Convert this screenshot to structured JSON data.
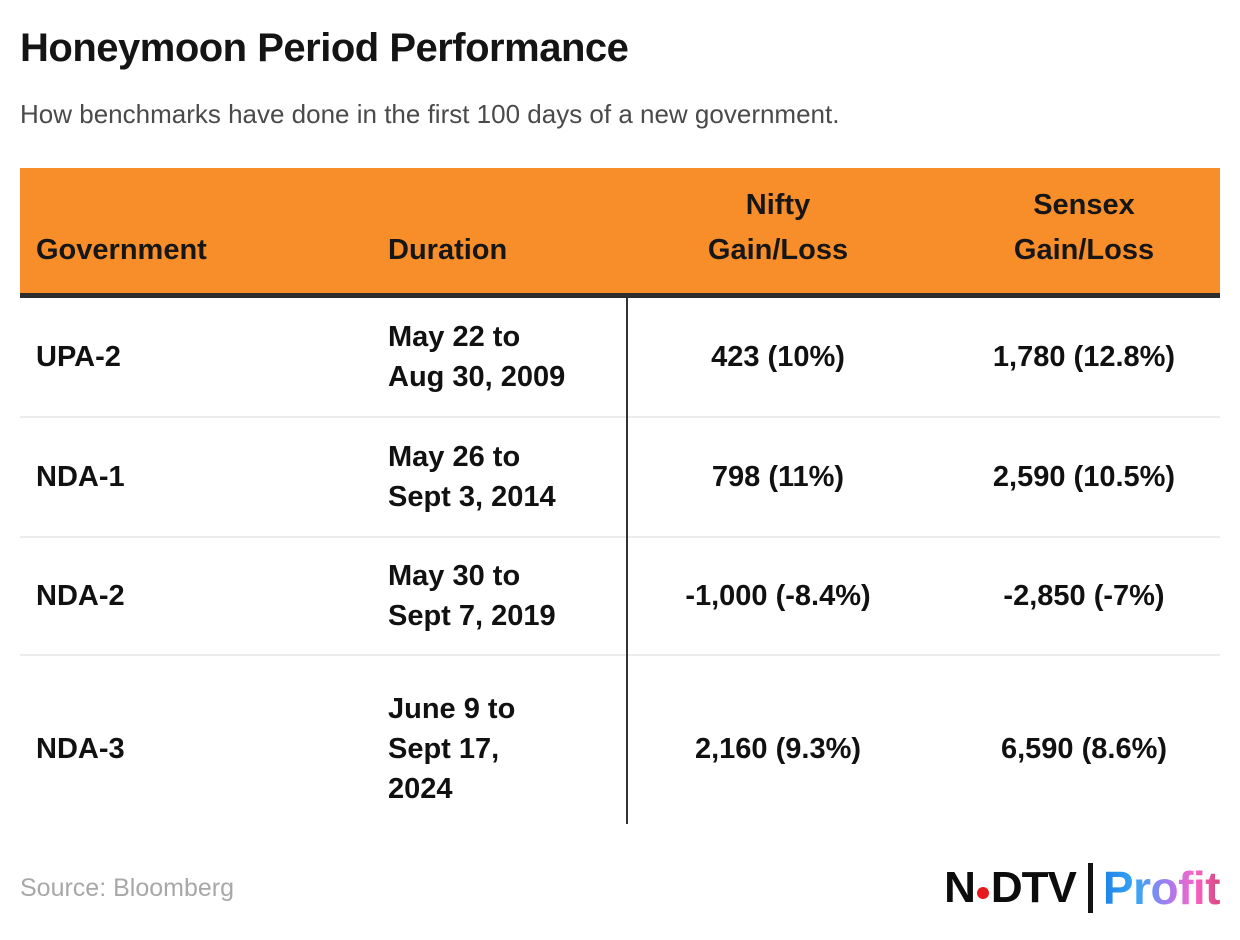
{
  "page": {
    "title": "Honeymoon Period Performance",
    "subtitle": "How benchmarks have done in the first 100 days of a new government.",
    "source": "Source: Bloomberg"
  },
  "colors": {
    "header_orange": "#F78E29",
    "header_underline": "#2d2d2d",
    "row_separator": "#ececec",
    "body_text": "#111111",
    "subtitle_text": "#4a4a4a",
    "source_text": "#a8a8a8",
    "ndtv_dot_red": "#e8191f",
    "profit_gradient_start": "#1f82e8",
    "profit_gradient_mid": "#a57cf0",
    "profit_gradient_end": "#d9487f"
  },
  "table": {
    "headers": {
      "government": "Government",
      "duration": "Duration",
      "nifty": "Nifty\nGain/Loss",
      "sensex": "Sensex\nGain/Loss"
    },
    "rows": [
      {
        "government": "UPA-2",
        "duration": "May 22 to\nAug 30, 2009",
        "nifty": "423 (10%)",
        "sensex": "1,780 (12.8%)"
      },
      {
        "government": "NDA-1",
        "duration": "May 26 to\nSept 3, 2014",
        "nifty": "798 (11%)",
        "sensex": "2,590 (10.5%)"
      },
      {
        "government": "NDA-2",
        "duration": "May 30 to\nSept 7, 2019",
        "nifty": "-1,000 (-8.4%)",
        "sensex": "-2,850 (-7%)"
      },
      {
        "government": "NDA-3",
        "duration": "June 9 to\nSept 17,\n2024",
        "nifty": "2,160 (9.3%)",
        "sensex": "6,590 (8.6%)"
      }
    ]
  },
  "logo": {
    "ndtv_n": "N",
    "ndtv_dtv": "DTV",
    "profit": "Profit"
  },
  "chart_data": {
    "type": "table",
    "title": "Honeymoon Period Performance",
    "subtitle": "How benchmarks have done in the first 100 days of a new government.",
    "columns": [
      "Government",
      "Duration",
      "Nifty Gain/Loss",
      "Sensex Gain/Loss"
    ],
    "rows": [
      [
        "UPA-2",
        "May 22 to Aug 30, 2009",
        "423 (10%)",
        "1,780 (12.8%)"
      ],
      [
        "NDA-1",
        "May 26 to Sept 3, 2014",
        "798 (11%)",
        "2,590 (10.5%)"
      ],
      [
        "NDA-2",
        "May 30 to Sept 7, 2019",
        "-1,000 (-8.4%)",
        "-2,850 (-7%)"
      ],
      [
        "NDA-3",
        "June 9 to Sept 17, 2024",
        "2,160 (9.3%)",
        "6,590 (8.6%)"
      ]
    ],
    "series": [
      {
        "name": "Nifty gain/loss (points)",
        "values": [
          423,
          798,
          -1000,
          2160
        ]
      },
      {
        "name": "Nifty gain/loss (%)",
        "values": [
          10,
          11,
          -8.4,
          9.3
        ]
      },
      {
        "name": "Sensex gain/loss (points)",
        "values": [
          1780,
          2590,
          -2850,
          6590
        ]
      },
      {
        "name": "Sensex gain/loss (%)",
        "values": [
          12.8,
          10.5,
          -7,
          8.6
        ]
      }
    ],
    "source": "Bloomberg"
  }
}
